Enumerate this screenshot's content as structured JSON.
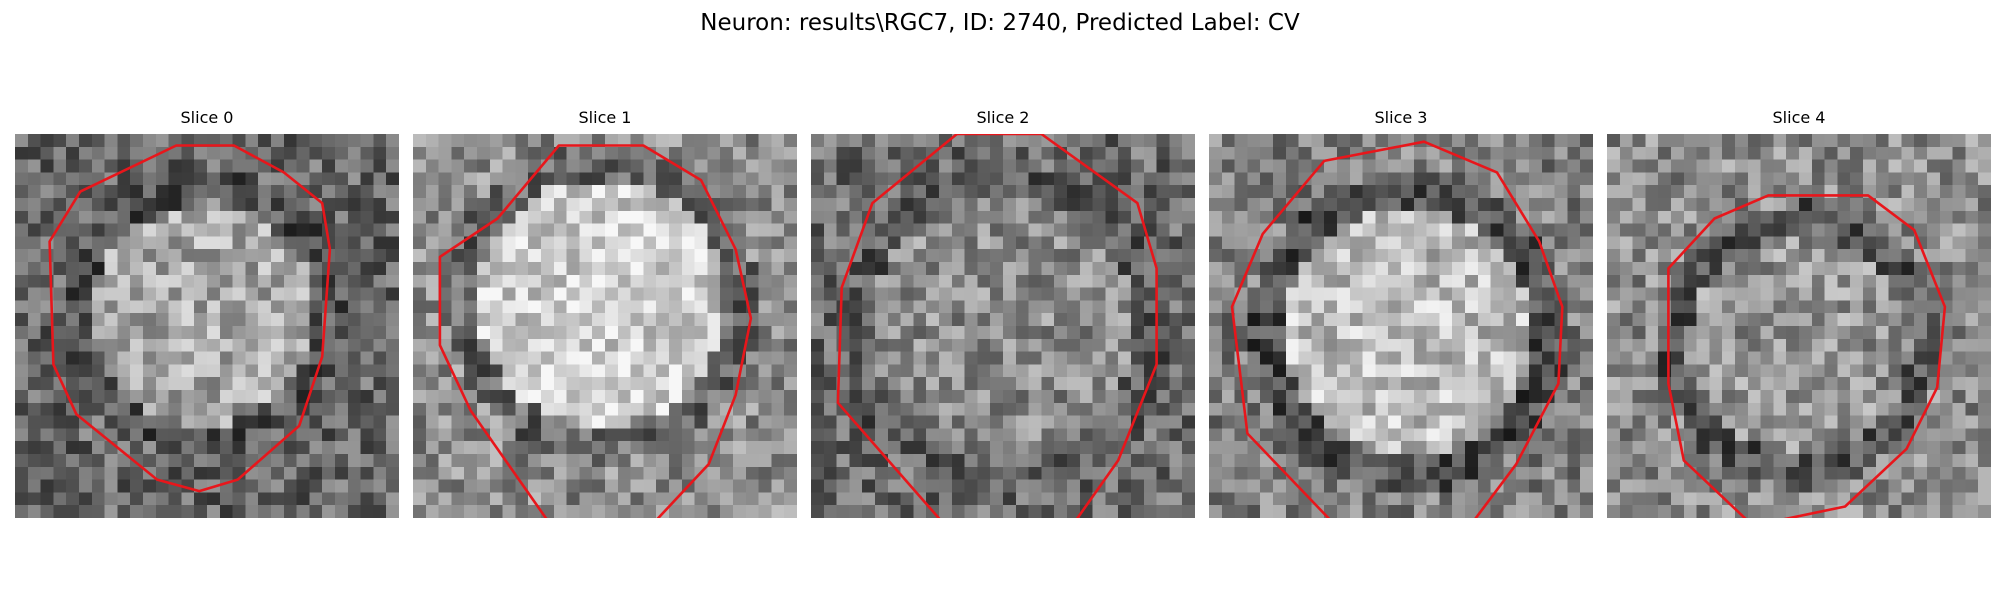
{
  "figure": {
    "title": "Neuron: results\\RGC7, ID: 2740, Predicted Label: CV"
  },
  "panels": [
    {
      "label": "Slice 0"
    },
    {
      "label": "Slice 1"
    },
    {
      "label": "Slice 2"
    },
    {
      "label": "Slice 3"
    },
    {
      "label": "Slice 4"
    }
  ],
  "colors": {
    "contour": "#e8161b",
    "background": "#ffffff",
    "colormap": "grayscale"
  }
}
